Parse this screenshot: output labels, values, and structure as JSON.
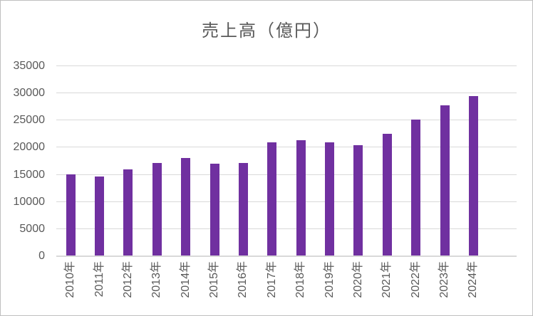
{
  "chart_data": {
    "type": "bar",
    "title": "売上高（億円）",
    "categories": [
      "2010年",
      "2011年",
      "2012年",
      "2013年",
      "2014年",
      "2015年",
      "2016年",
      "2017年",
      "2018年",
      "2019年",
      "2020年",
      "2021年",
      "2022年",
      "2023年",
      "2024年"
    ],
    "values": [
      14900,
      14600,
      15800,
      17100,
      17900,
      16900,
      17100,
      20800,
      21200,
      20900,
      20300,
      22400,
      25100,
      27700,
      29400
    ],
    "xlabel": "",
    "ylabel": "",
    "ylim": [
      0,
      35000
    ],
    "yticks": [
      0,
      5000,
      10000,
      15000,
      20000,
      25000,
      30000,
      35000
    ],
    "grid": true,
    "legend": "none",
    "bar_color": "#7030A0",
    "axis_text_color": "#595959",
    "title_color": "#595959",
    "gridline_color": "#D9D9D9",
    "background_color": "#FFFFFF",
    "border_color": "#BFBFBF",
    "x_axis_empty_trailing_slots": 1
  }
}
